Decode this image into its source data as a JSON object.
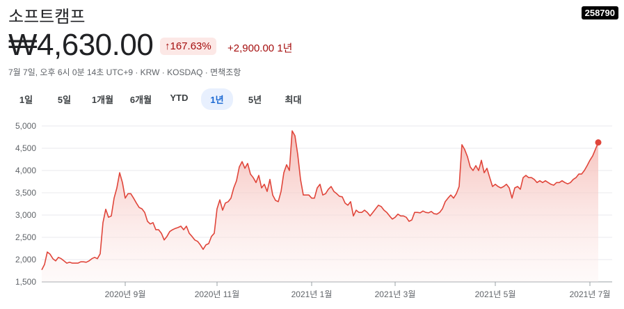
{
  "header": {
    "name": "소프트캠프",
    "ticker": "258790",
    "price": "₩4,630.00",
    "change_pct": "167.63%",
    "change_abs": "+2,900.00",
    "period": "1년",
    "info": "7월 7일, 오후 6시 0분 14초 UTC+9 · KRW · KOSDAQ · 면책조항"
  },
  "tabs": {
    "items": [
      "1일",
      "5일",
      "1개월",
      "6개월",
      "YTD",
      "1년",
      "5년",
      "최대"
    ],
    "selected": 5
  },
  "chart_data": {
    "type": "line",
    "color": "#e0453a",
    "grid": true,
    "ylim": [
      1500,
      5000
    ],
    "yticks": [
      {
        "value": 1500,
        "label": "1,500"
      },
      {
        "value": 2000,
        "label": "2,000"
      },
      {
        "value": 2500,
        "label": "2,500"
      },
      {
        "value": 3000,
        "label": "3,000"
      },
      {
        "value": 3500,
        "label": "3,500"
      },
      {
        "value": 4000,
        "label": "4,000"
      },
      {
        "value": 4500,
        "label": "4,500"
      },
      {
        "value": 5000,
        "label": "5,000"
      }
    ],
    "xlim": [
      0,
      200
    ],
    "xticks": [
      {
        "value": 30,
        "label": "2020년 9월"
      },
      {
        "value": 63,
        "label": "2020년 11월"
      },
      {
        "value": 97,
        "label": "2021년 1월"
      },
      {
        "value": 127,
        "label": "2021년 3월"
      },
      {
        "value": 163,
        "label": "2021년 5월"
      },
      {
        "value": 197,
        "label": "2021년 7월"
      }
    ],
    "values": [
      1770,
      1890,
      2170,
      2120,
      2020,
      1970,
      2050,
      2020,
      1970,
      1920,
      1940,
      1920,
      1920,
      1920,
      1950,
      1950,
      1940,
      1970,
      2020,
      2050,
      2020,
      2130,
      2830,
      3130,
      2950,
      2980,
      3380,
      3610,
      3950,
      3730,
      3380,
      3480,
      3480,
      3380,
      3270,
      3170,
      3140,
      3060,
      2860,
      2800,
      2830,
      2670,
      2670,
      2590,
      2440,
      2520,
      2630,
      2670,
      2700,
      2720,
      2750,
      2670,
      2750,
      2590,
      2520,
      2440,
      2410,
      2330,
      2230,
      2330,
      2360,
      2520,
      2590,
      3140,
      3340,
      3110,
      3270,
      3300,
      3380,
      3610,
      3770,
      4080,
      4200,
      4050,
      4160,
      3920,
      3840,
      3730,
      3890,
      3610,
      3690,
      3530,
      3800,
      3450,
      3330,
      3300,
      3530,
      3950,
      4130,
      4000,
      4890,
      4780,
      4360,
      3800,
      3450,
      3450,
      3450,
      3380,
      3380,
      3610,
      3690,
      3450,
      3480,
      3580,
      3640,
      3530,
      3480,
      3420,
      3410,
      3270,
      3220,
      3300,
      2980,
      3110,
      3060,
      3060,
      3110,
      3060,
      2980,
      3060,
      3140,
      3220,
      3190,
      3110,
      3060,
      2980,
      2910,
      2950,
      3020,
      2980,
      2980,
      2950,
      2860,
      2890,
      3060,
      3060,
      3050,
      3090,
      3060,
      3050,
      3080,
      3030,
      3020,
      3060,
      3140,
      3300,
      3380,
      3450,
      3380,
      3480,
      3640,
      4580,
      4470,
      4310,
      4080,
      4000,
      4110,
      4000,
      4230,
      3950,
      4050,
      3840,
      3640,
      3690,
      3640,
      3610,
      3640,
      3690,
      3610,
      3380,
      3610,
      3640,
      3580,
      3840,
      3890,
      3840,
      3840,
      3800,
      3730,
      3770,
      3730,
      3770,
      3730,
      3690,
      3670,
      3730,
      3730,
      3770,
      3730,
      3700,
      3730,
      3800,
      3840,
      3920,
      3920,
      4000,
      4110,
      4230,
      4330,
      4480,
      4630
    ]
  }
}
